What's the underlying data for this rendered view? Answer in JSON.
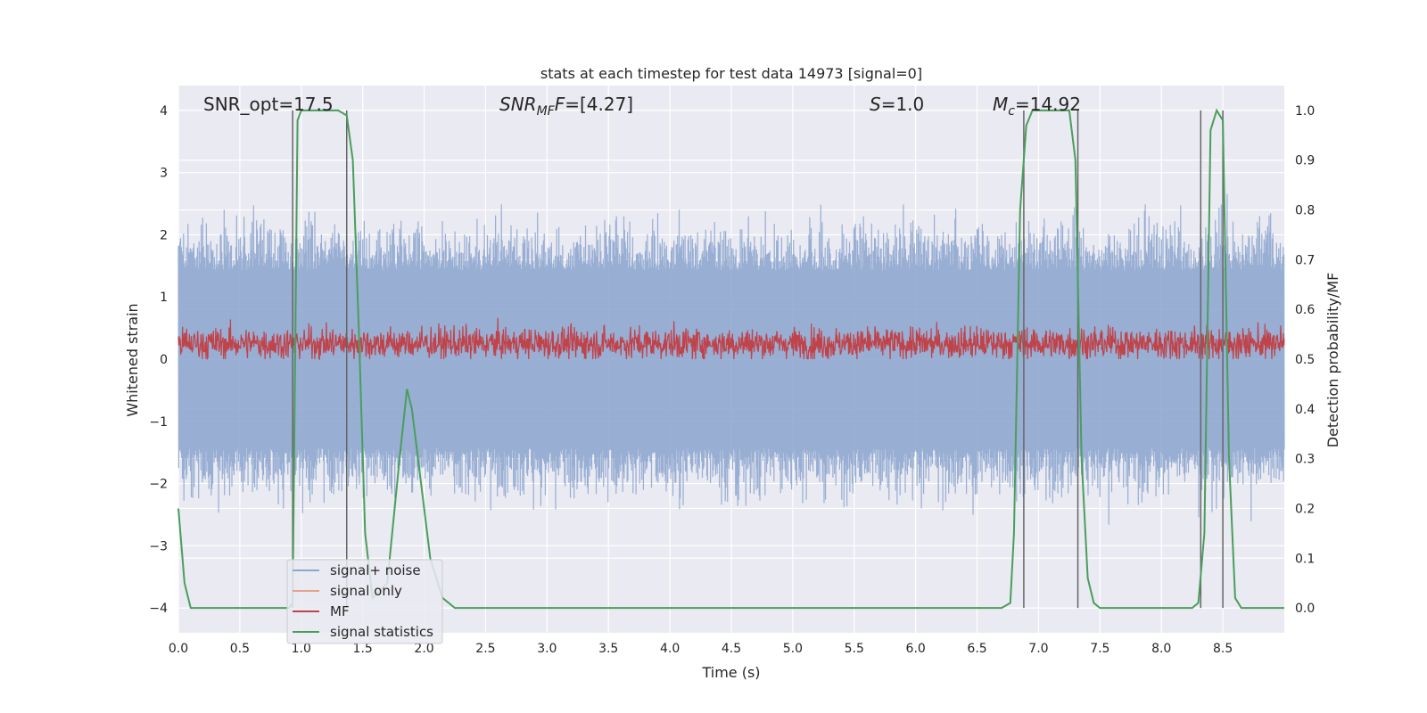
{
  "chart_data": {
    "type": "line",
    "title": "stats at each timestep for test data 14973 [signal=0]",
    "xlabel": "Time (s)",
    "ylabel_left": "Whitened strain",
    "ylabel_right": "Detection probability/MF",
    "xlim": [
      0,
      9.0
    ],
    "ylim_left": [
      -4.4,
      4.4
    ],
    "ylim_right": [
      -0.05,
      1.05
    ],
    "xticks": [
      "0.0",
      "0.5",
      "1.0",
      "1.5",
      "2.0",
      "2.5",
      "3.0",
      "3.5",
      "4.0",
      "4.5",
      "5.0",
      "5.5",
      "6.0",
      "6.5",
      "7.0",
      "7.5",
      "8.0",
      "8.5"
    ],
    "yticks_left": [
      "4",
      "3",
      "2",
      "1",
      "0",
      "−1",
      "−2",
      "−3",
      "−4"
    ],
    "yticks_right": [
      "1.0",
      "0.9",
      "0.8",
      "0.7",
      "0.6",
      "0.5",
      "0.4",
      "0.3",
      "0.2",
      "0.1",
      "0.0"
    ],
    "grid": true,
    "legend_position": "lower-left",
    "annotations": {
      "snr_opt": "SNR_opt=17.5",
      "snr_mf": "SNR",
      "snr_mf_sub": "MF",
      "snr_mf_val": "=[4.27]",
      "s_sym": "S",
      "s_val": "=1.0",
      "mc_sym": "M",
      "mc_sub": "c",
      "mc_val": "=14.92"
    },
    "series": [
      {
        "name": "signal+ noise",
        "color": "#8fa7cf",
        "description_type": "dense noise",
        "amplitude_envelope": [
          -2.6,
          2.6
        ]
      },
      {
        "name": "signal only",
        "color": "#e8a08a",
        "values": []
      },
      {
        "name": "MF",
        "color": "#c0434a",
        "amplitude_range_right_axis": [
          0.5,
          0.59
        ]
      },
      {
        "name": "signal statistics",
        "color": "#4a9e5c",
        "x": [
          0.0,
          0.05,
          0.1,
          0.15,
          0.2,
          0.4,
          0.6,
          0.7,
          0.8,
          0.9,
          0.93,
          0.95,
          0.97,
          1.0,
          1.3,
          1.37,
          1.42,
          1.47,
          1.52,
          1.58,
          1.7,
          1.8,
          1.86,
          1.9,
          1.95,
          2.05,
          2.15,
          2.25,
          2.5,
          3.0,
          4.0,
          5.0,
          6.0,
          6.5,
          6.7,
          6.77,
          6.8,
          6.85,
          6.9,
          6.95,
          7.0,
          7.25,
          7.3,
          7.35,
          7.4,
          7.45,
          7.5,
          8.0,
          8.25,
          8.3,
          8.35,
          8.4,
          8.45,
          8.5,
          8.55,
          8.6,
          8.65,
          8.7,
          9.0
        ],
        "values": [
          0.2,
          0.05,
          0.0,
          0.0,
          0.0,
          0.0,
          0.0,
          0.0,
          0.0,
          0.0,
          0.01,
          0.5,
          0.98,
          1.0,
          1.0,
          0.99,
          0.9,
          0.55,
          0.15,
          0.02,
          0.05,
          0.3,
          0.44,
          0.4,
          0.3,
          0.1,
          0.02,
          0.0,
          0.0,
          0.0,
          0.0,
          0.0,
          0.0,
          0.0,
          0.0,
          0.01,
          0.15,
          0.8,
          0.97,
          1.0,
          1.0,
          1.0,
          0.9,
          0.3,
          0.06,
          0.01,
          0.0,
          0.0,
          0.0,
          0.01,
          0.15,
          0.96,
          1.0,
          0.98,
          0.3,
          0.02,
          0.0,
          0.0,
          0.0
        ]
      },
      {
        "name": "vertical markers",
        "color": "#666666",
        "x": [
          0.93,
          1.37,
          6.88,
          7.32,
          8.32,
          8.5
        ]
      }
    ]
  }
}
